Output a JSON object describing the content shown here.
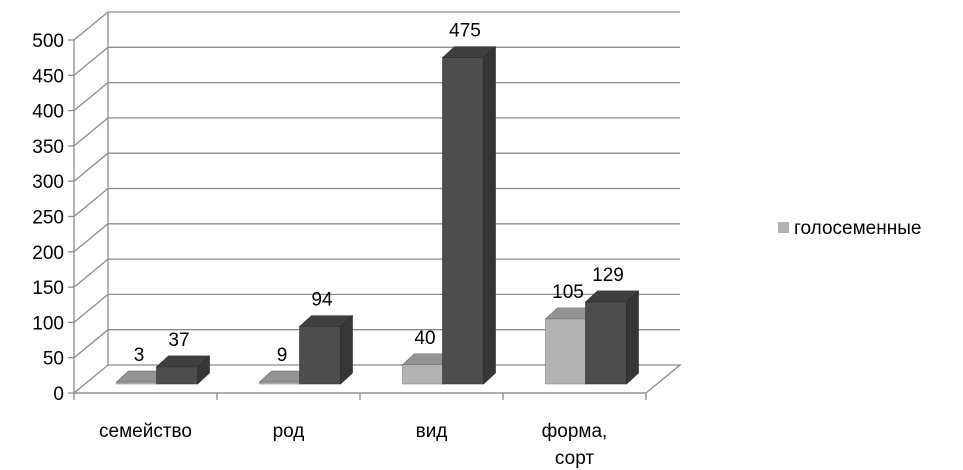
{
  "chart_data": {
    "type": "bar",
    "categories": [
      "семейство",
      "род",
      "вид",
      "форма, сорт"
    ],
    "series": [
      {
        "name": "голосеменные",
        "values": [
          3,
          9,
          40,
          105
        ],
        "color": "#b3b3b3"
      },
      {
        "values": [
          37,
          94,
          475,
          129
        ],
        "color": "#4d4d4d"
      }
    ],
    "ylim": [
      0,
      500
    ],
    "yticks": [
      0,
      50,
      100,
      150,
      200,
      250,
      300,
      350,
      400,
      450,
      500
    ],
    "grid": true,
    "legend_position": "right",
    "three_d": true
  }
}
